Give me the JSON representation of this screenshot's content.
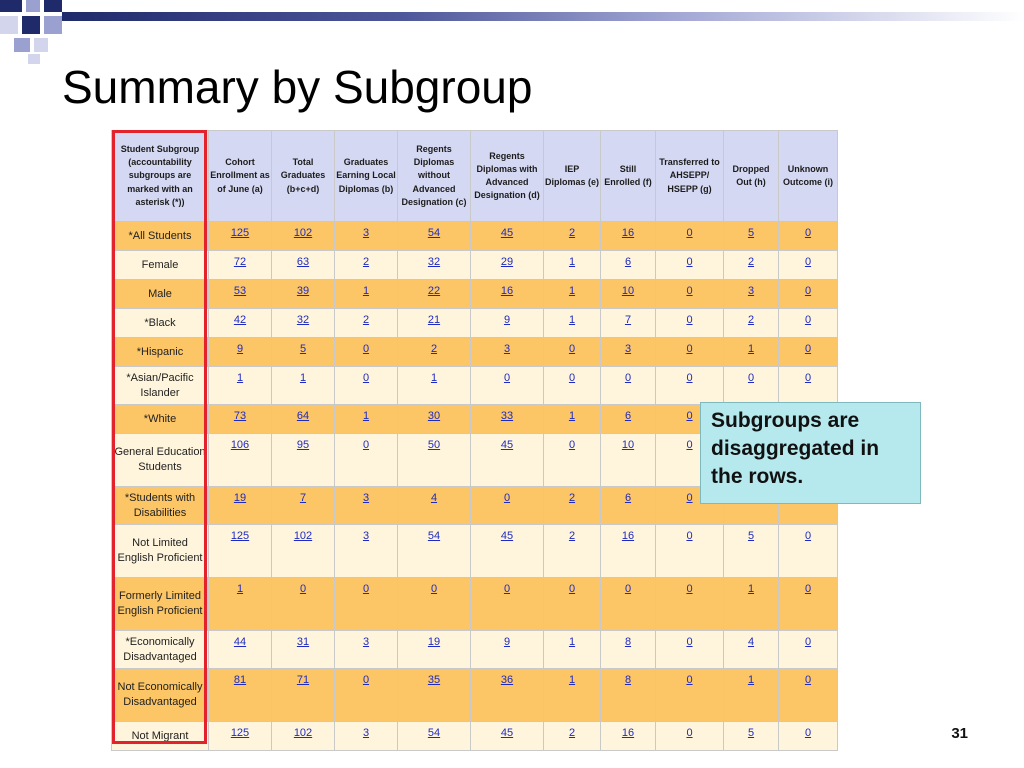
{
  "slide": {
    "title": "Summary by Subgroup",
    "callout": "Subgroups are disaggregated in the rows.",
    "page_number": "31"
  },
  "table": {
    "headers": [
      "Student Subgroup (accountability subgroups are marked with an asterisk (*))",
      "Cohort Enrollment as of June (a)",
      "Total Graduates (b+c+d)",
      "Graduates Earning Local Diplomas (b)",
      "Regents Diplomas without Advanced Designation (c)",
      "Regents Diplomas with Advanced Designation (d)",
      "IEP Diplomas (e)",
      "Still Enrolled (f)",
      "Transferred to AHSEPP/ HSEPP (g)",
      "Dropped Out (h)",
      "Unknown Outcome (i)"
    ],
    "rows": [
      {
        "subgroup": "*All Students",
        "values": [
          "125",
          "102",
          "3",
          "54",
          "45",
          "2",
          "16",
          "0",
          "5",
          "0"
        ]
      },
      {
        "subgroup": "Female",
        "values": [
          "72",
          "63",
          "2",
          "32",
          "29",
          "1",
          "6",
          "0",
          "2",
          "0"
        ]
      },
      {
        "subgroup": "Male",
        "values": [
          "53",
          "39",
          "1",
          "22",
          "16",
          "1",
          "10",
          "0",
          "3",
          "0"
        ]
      },
      {
        "subgroup": "*Black",
        "values": [
          "42",
          "32",
          "2",
          "21",
          "9",
          "1",
          "7",
          "0",
          "2",
          "0"
        ]
      },
      {
        "subgroup": "*Hispanic",
        "values": [
          "9",
          "5",
          "0",
          "2",
          "3",
          "0",
          "3",
          "0",
          "1",
          "0"
        ]
      },
      {
        "subgroup": "*Asian/Pacific Islander",
        "values": [
          "1",
          "1",
          "0",
          "1",
          "0",
          "0",
          "0",
          "0",
          "0",
          "0"
        ]
      },
      {
        "subgroup": "*White",
        "values": [
          "73",
          "64",
          "1",
          "30",
          "33",
          "1",
          "6",
          "0",
          "",
          ""
        ]
      },
      {
        "subgroup": "General Education Students",
        "values": [
          "106",
          "95",
          "0",
          "50",
          "45",
          "0",
          "10",
          "0",
          "",
          ""
        ]
      },
      {
        "subgroup": "*Students with Disabilities",
        "values": [
          "19",
          "7",
          "3",
          "4",
          "0",
          "2",
          "6",
          "0",
          "",
          ""
        ]
      },
      {
        "subgroup": "Not Limited English Proficient",
        "values": [
          "125",
          "102",
          "3",
          "54",
          "45",
          "2",
          "16",
          "0",
          "5",
          "0"
        ]
      },
      {
        "subgroup": "Formerly Limited English Proficient",
        "values": [
          "1",
          "0",
          "0",
          "0",
          "0",
          "0",
          "0",
          "0",
          "1",
          "0"
        ]
      },
      {
        "subgroup": "*Economically Disadvantaged",
        "values": [
          "44",
          "31",
          "3",
          "19",
          "9",
          "1",
          "8",
          "0",
          "4",
          "0"
        ]
      },
      {
        "subgroup": "Not Economically Disadvantaged",
        "values": [
          "81",
          "71",
          "0",
          "35",
          "36",
          "1",
          "8",
          "0",
          "1",
          "0"
        ]
      },
      {
        "subgroup": "Not Migrant",
        "values": [
          "125",
          "102",
          "3",
          "54",
          "45",
          "2",
          "16",
          "0",
          "5",
          "0"
        ]
      }
    ]
  },
  "colors": {
    "header_bg": "#d4d8f2",
    "row_odd": "#fcc565",
    "row_even": "#fff5dc",
    "highlight_border": "#e3232b",
    "callout_bg": "#b5e9ee",
    "link": "#1f2bbf",
    "deco_navy": "#1f2a6b"
  }
}
